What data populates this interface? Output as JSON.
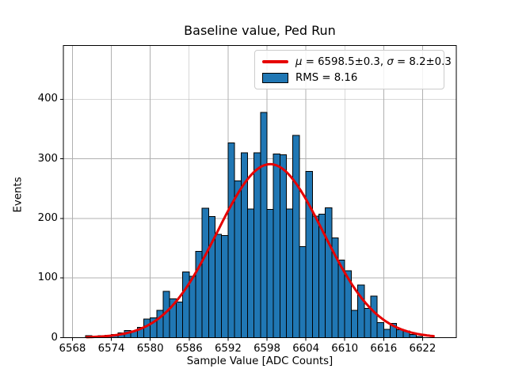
{
  "chart_data": {
    "type": "bar",
    "subtype": "histogram-with-gaussian-fit",
    "title": "Baseline value, Ped Run",
    "xlabel": "Sample Value [ADC Counts]",
    "ylabel": "Events",
    "bin_start": 6570,
    "bin_width": 1,
    "counts": [
      3,
      2,
      3,
      4,
      5,
      8,
      12,
      11,
      17,
      31,
      33,
      46,
      78,
      65,
      60,
      110,
      103,
      145,
      217,
      203,
      173,
      171,
      327,
      263,
      310,
      216,
      310,
      378,
      215,
      308,
      307,
      216,
      339,
      153,
      279,
      204,
      207,
      218,
      167,
      130,
      112,
      46,
      88,
      49,
      70,
      25,
      14,
      24,
      13,
      11,
      5,
      2
    ],
    "xticks": [
      6568,
      6574,
      6580,
      6586,
      6592,
      6598,
      6604,
      6610,
      6616,
      6622
    ],
    "yticks": [
      0,
      100,
      200,
      300,
      400
    ],
    "xlim": [
      6566.6,
      6627.2
    ],
    "ylim": [
      0,
      490
    ],
    "grid": true,
    "legend_position": "upper right",
    "fit": {
      "type": "gaussian",
      "mu": 6598.5,
      "mu_err": 0.3,
      "sigma": 8.2,
      "sigma_err": 0.3,
      "amplitude": 291,
      "x_start": 6570.2,
      "x_end": 6623.8
    },
    "legend": {
      "fit_mu_symbol": "μ",
      "fit_mu_text": " = 6598.5±0.3, ",
      "fit_sigma_symbol": "σ",
      "fit_sigma_text": " = 8.2±0.3",
      "rms_label": "RMS = 8.16"
    },
    "colors": {
      "bar": "#2077b4",
      "bar_edge": "#000000",
      "fit_line": "#e60000",
      "grid": "#b0b0b0",
      "spine": "#000000",
      "legend_edge": "#cccccc",
      "background": "#ffffff"
    }
  }
}
